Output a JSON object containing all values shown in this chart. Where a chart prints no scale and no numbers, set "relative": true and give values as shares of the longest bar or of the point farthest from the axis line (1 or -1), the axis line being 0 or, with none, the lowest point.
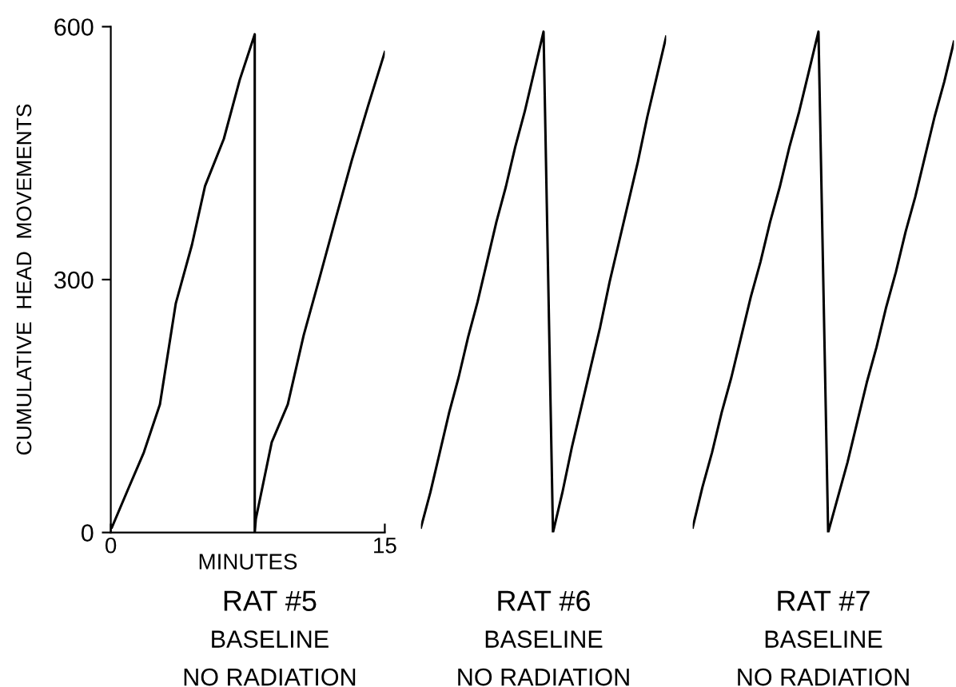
{
  "chart_data": [
    {
      "type": "line",
      "xlabel": "MINUTES",
      "ylabel": "CUMULATIVE  HEAD  MOVEMENTS",
      "xlim": [
        0,
        15
      ],
      "ylim": [
        0,
        600
      ],
      "xticks": [
        0,
        15
      ],
      "yticks": [
        0,
        300,
        600
      ],
      "line_style": "solid",
      "annotations": [
        "RAT #5",
        "BASELINE",
        "NO RADIATION"
      ],
      "series": [
        {
          "color": "#000000",
          "x": [
            0.06,
            0.94,
            1.81,
            2.69,
            3.56,
            4.44,
            5.16,
            6.19,
            7.06,
            7.88,
            7.88,
            7.94,
            8.81,
            9.69,
            10.56,
            11.44,
            12.32,
            13.2,
            14.07,
            15
          ],
          "values": [
            6,
            51,
            95,
            152,
            272,
            341,
            411,
            467,
            537,
            591,
            0,
            16,
            107,
            152,
            234,
            303,
            373,
            442,
            505,
            570
          ]
        }
      ]
    },
    {
      "type": "line",
      "relative": true,
      "tick_labels": false,
      "line_style": "solid",
      "annotations": [
        "RAT #6",
        "BASELINE",
        "NO RADIATION"
      ],
      "categories": [
        null,
        null,
        null,
        null,
        null,
        null,
        null,
        null,
        null,
        null,
        null,
        null,
        null,
        null,
        null,
        null,
        null,
        null,
        null,
        null,
        null,
        null,
        null,
        null,
        null,
        null,
        null
      ],
      "series": [
        {
          "color": "#000000",
          "values": [
            0.01,
            0.08,
            0.16,
            0.24,
            0.31,
            0.39,
            0.46,
            0.54,
            0.62,
            0.69,
            0.77,
            0.84,
            0.92,
            1,
            0,
            0.08,
            0.17,
            0.25,
            0.33,
            0.41,
            0.5,
            0.58,
            0.66,
            0.74,
            0.83,
            0.91,
            0.99
          ]
        }
      ]
    },
    {
      "type": "line",
      "relative": true,
      "tick_labels": false,
      "line_style": "solid",
      "annotations": [
        "RAT #7",
        "BASELINE",
        "NO RADIATION"
      ],
      "categories": [
        null,
        null,
        null,
        null,
        null,
        null,
        null,
        null,
        null,
        null,
        null,
        null,
        null,
        null,
        null,
        null,
        null,
        null,
        null,
        null,
        null,
        null,
        null,
        null,
        null,
        null,
        null,
        null
      ],
      "series": [
        {
          "color": "#000000",
          "values": [
            0.01,
            0.09,
            0.16,
            0.24,
            0.31,
            0.39,
            0.47,
            0.54,
            0.62,
            0.69,
            0.77,
            0.84,
            0.92,
            1,
            0,
            0.07,
            0.14,
            0.22,
            0.3,
            0.37,
            0.45,
            0.52,
            0.6,
            0.67,
            0.75,
            0.83,
            0.9,
            0.98
          ]
        }
      ]
    }
  ]
}
